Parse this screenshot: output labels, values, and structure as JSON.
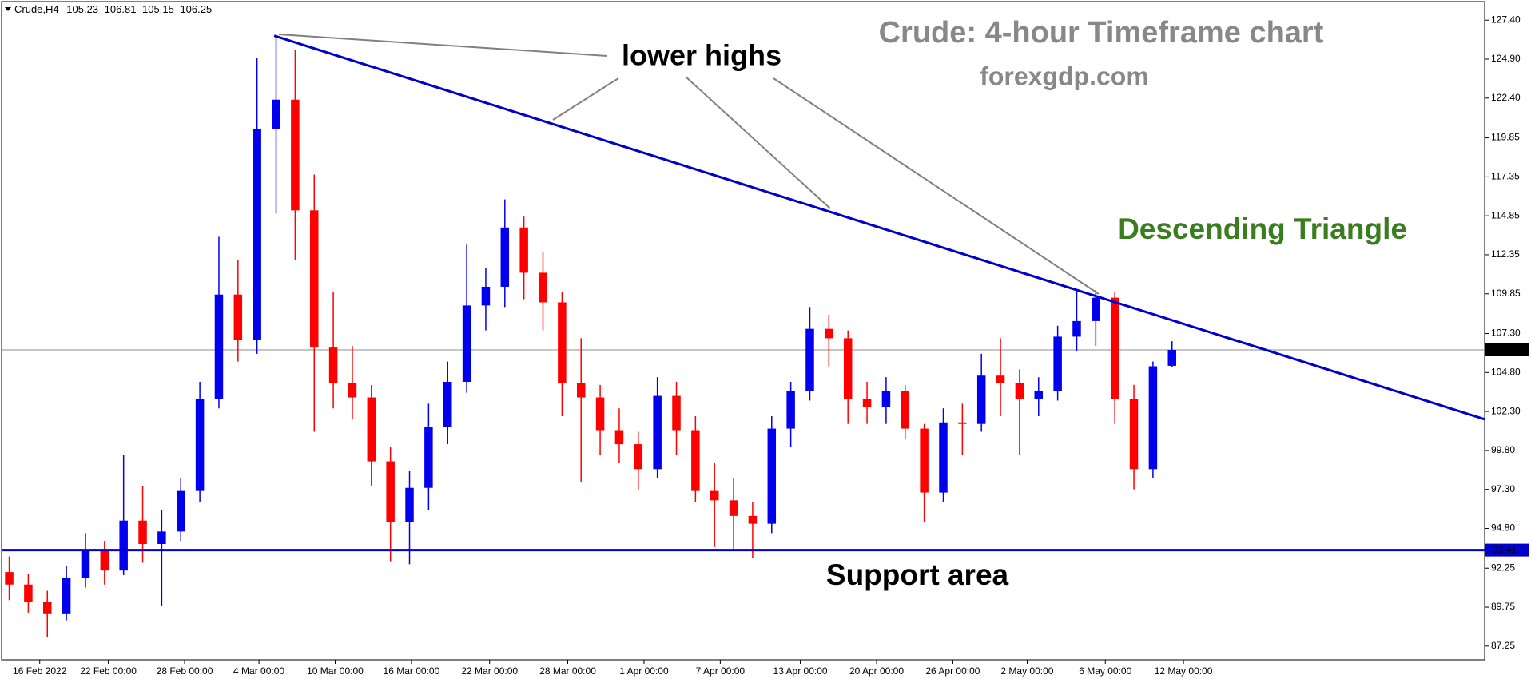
{
  "chart_data": {
    "type": "candlestick",
    "symbol": "Crude,H4",
    "title": "Crude: 4-hour Timeframe chart",
    "subtitle": "forexgdp.com",
    "annotations": [
      "lower highs",
      "Descending Triangle",
      "Support area"
    ],
    "up_color": "#0000ee",
    "down_color": "#ff0000",
    "open": [
      92.0,
      91.2,
      90.1,
      89.3,
      91.6,
      93.4,
      92.1,
      95.3,
      93.8,
      94.6,
      97.2,
      103.1,
      109.8,
      106.9,
      120.4,
      122.3,
      115.2,
      106.4,
      104.1,
      103.2,
      99.1,
      95.2,
      97.4,
      101.3,
      104.2,
      109.1,
      110.3,
      114.1,
      111.2,
      109.3,
      104.1,
      103.2,
      101.1,
      100.2,
      98.6,
      103.3,
      101.1,
      97.2,
      96.6,
      95.6,
      95.1,
      101.2,
      103.6,
      107.6,
      107.0,
      103.1,
      102.6,
      103.6,
      101.2,
      97.1,
      101.6,
      101.5,
      104.6,
      104.1,
      103.1,
      103.6,
      107.1,
      108.1,
      109.6,
      103.1,
      98.6,
      105.23
    ],
    "high": [
      93.0,
      91.9,
      90.8,
      92.4,
      94.5,
      94.0,
      99.5,
      97.5,
      96.0,
      98.0,
      104.2,
      113.5,
      112.0,
      125.0,
      126.3,
      125.5,
      117.5,
      110.0,
      106.5,
      104.0,
      100.0,
      98.5,
      102.8,
      105.5,
      113.0,
      111.5,
      115.9,
      114.8,
      112.5,
      110.0,
      107.0,
      104.0,
      102.5,
      101.0,
      104.5,
      104.2,
      102.0,
      99.0,
      98.0,
      96.5,
      102.0,
      104.2,
      109.0,
      108.5,
      107.5,
      104.2,
      104.5,
      104.0,
      101.5,
      102.5,
      102.8,
      106.0,
      107.0,
      105.0,
      104.5,
      107.8,
      110.0,
      110.1,
      110.0,
      104.0,
      105.5,
      106.81
    ],
    "low": [
      90.2,
      89.4,
      87.8,
      88.9,
      91.0,
      91.2,
      91.8,
      92.6,
      89.8,
      94.0,
      96.5,
      102.5,
      105.5,
      106.0,
      115.0,
      112.0,
      101.0,
      102.5,
      101.8,
      97.5,
      92.7,
      92.5,
      96.0,
      100.2,
      103.5,
      107.5,
      109.0,
      109.5,
      107.5,
      102.0,
      97.8,
      99.5,
      99.0,
      97.3,
      98.0,
      99.5,
      96.5,
      93.6,
      93.5,
      92.9,
      94.5,
      100.0,
      103.0,
      105.2,
      101.5,
      101.5,
      101.5,
      100.5,
      95.2,
      96.5,
      99.5,
      101.0,
      102.0,
      99.5,
      102.0,
      103.0,
      106.2,
      106.5,
      101.5,
      97.3,
      98.0,
      105.15
    ],
    "close": [
      91.2,
      90.1,
      89.3,
      91.6,
      93.4,
      92.1,
      95.3,
      93.8,
      94.6,
      97.2,
      103.1,
      109.8,
      106.9,
      120.4,
      122.3,
      115.2,
      106.4,
      104.1,
      103.2,
      99.1,
      95.2,
      97.4,
      101.3,
      104.2,
      109.1,
      110.3,
      114.1,
      111.2,
      109.3,
      104.1,
      103.2,
      101.1,
      100.2,
      98.6,
      103.3,
      101.1,
      97.2,
      96.6,
      95.6,
      95.1,
      101.2,
      103.6,
      107.6,
      107.0,
      103.1,
      102.6,
      103.6,
      101.2,
      97.1,
      101.6,
      101.5,
      104.6,
      104.1,
      103.1,
      103.6,
      107.1,
      108.1,
      109.6,
      103.1,
      98.6,
      105.2,
      106.25
    ],
    "xlim": [
      -0.4,
      77.4
    ],
    "xticks": [
      {
        "value": 1.6,
        "label": "16 Feb 2022"
      },
      {
        "value": 5.2,
        "label": "22 Feb 00:00"
      },
      {
        "value": 9.2,
        "label": "28 Feb 00:00"
      },
      {
        "value": 13.1,
        "label": "4 Mar 00:00"
      },
      {
        "value": 17.1,
        "label": "10 Mar 00:00"
      },
      {
        "value": 21.1,
        "label": "16 Mar 00:00"
      },
      {
        "value": 25.2,
        "label": "22 Mar 00:00"
      },
      {
        "value": 29.3,
        "label": "28 Mar 00:00"
      },
      {
        "value": 33.3,
        "label": "1 Apr 00:00"
      },
      {
        "value": 37.3,
        "label": "7 Apr 00:00"
      },
      {
        "value": 41.5,
        "label": "13 Apr 00:00"
      },
      {
        "value": 45.5,
        "label": "20 Apr 00:00"
      },
      {
        "value": 49.5,
        "label": "26 Apr 00:00"
      },
      {
        "value": 53.4,
        "label": "2 May 00:00"
      },
      {
        "value": 57.5,
        "label": "6 May 00:00"
      },
      {
        "value": 61.6,
        "label": "12 May 00:00"
      }
    ],
    "ylim": [
      86.37,
      128.59
    ],
    "yticks": [
      {
        "value": 127.4,
        "label": "127.40"
      },
      {
        "value": 124.9,
        "label": "124.90"
      },
      {
        "value": 122.4,
        "label": "122.40"
      },
      {
        "value": 119.85,
        "label": "119.85"
      },
      {
        "value": 117.35,
        "label": "117.35"
      },
      {
        "value": 114.85,
        "label": "114.85"
      },
      {
        "value": 112.35,
        "label": "112.35"
      },
      {
        "value": 109.85,
        "label": "109.85"
      },
      {
        "value": 107.3,
        "label": "107.30"
      },
      {
        "value": 104.8,
        "label": "104.80"
      },
      {
        "value": 102.3,
        "label": "102.30"
      },
      {
        "value": 99.8,
        "label": "99.80"
      },
      {
        "value": 97.3,
        "label": "97.30"
      },
      {
        "value": 94.8,
        "label": "94.80"
      },
      {
        "value": 92.25,
        "label": "92.25"
      },
      {
        "value": 89.75,
        "label": "89.75"
      },
      {
        "value": 87.25,
        "label": "87.25"
      }
    ],
    "grid": false,
    "support_level": 93.41,
    "support_color": "#0000cc",
    "trendline": {
      "x": [
        13.9,
        77.4
      ],
      "y": [
        126.4,
        101.8
      ],
      "color": "#0000cc"
    }
  }
}
